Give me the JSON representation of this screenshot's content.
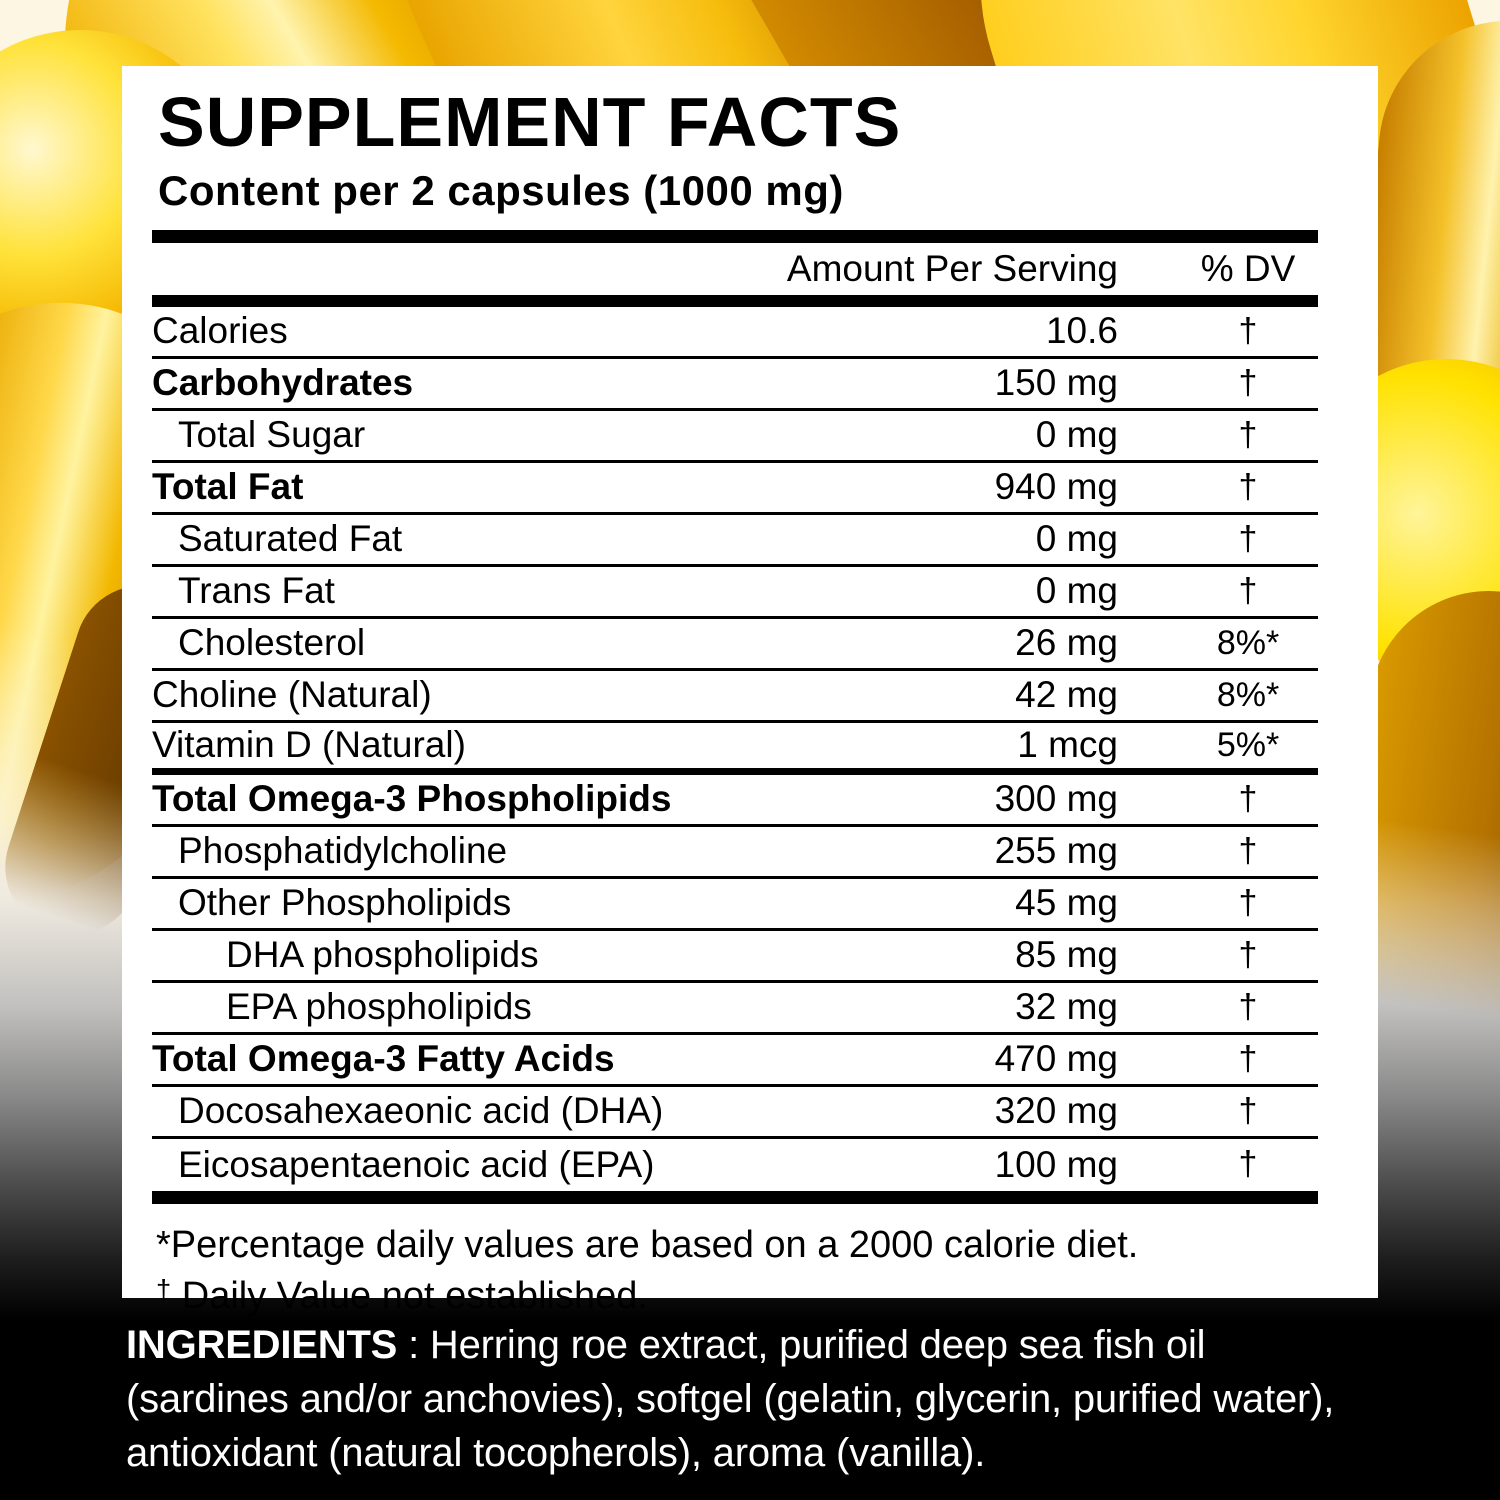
{
  "header": {
    "title": "SUPPLEMENT FACTS",
    "subtitle": "Content per 2 capsules (1000 mg)"
  },
  "table": {
    "amount_header": "Amount Per Serving",
    "dv_header": "% DV",
    "rows": [
      {
        "label": "Calories",
        "amount": "10.6",
        "dv": "†",
        "bold": false,
        "indent": 0,
        "thick_bottom": false
      },
      {
        "label": "Carbohydrates",
        "amount": "150 mg",
        "dv": "†",
        "bold": true,
        "indent": 0,
        "thick_bottom": false
      },
      {
        "label": "Total Sugar",
        "amount": "0 mg",
        "dv": "†",
        "bold": false,
        "indent": 1,
        "thick_bottom": false
      },
      {
        "label": "Total Fat",
        "amount": "940 mg",
        "dv": "†",
        "bold": true,
        "indent": 0,
        "thick_bottom": false
      },
      {
        "label": "Saturated Fat",
        "amount": "0 mg",
        "dv": "†",
        "bold": false,
        "indent": 1,
        "thick_bottom": false
      },
      {
        "label": "Trans Fat",
        "amount": "0 mg",
        "dv": "†",
        "bold": false,
        "indent": 1,
        "thick_bottom": false
      },
      {
        "label": "Cholesterol",
        "amount": "26 mg",
        "dv": "8%*",
        "bold": false,
        "indent": 1,
        "thick_bottom": false
      },
      {
        "label": "Choline (Natural)",
        "amount": "42 mg",
        "dv": "8%*",
        "bold": false,
        "indent": 0,
        "thick_bottom": false
      },
      {
        "label": "Vitamin D (Natural)",
        "amount": "1 mcg",
        "dv": "5%*",
        "bold": false,
        "indent": 0,
        "thick_bottom": true
      },
      {
        "label": "Total Omega-3 Phospholipids",
        "amount": "300 mg",
        "dv": "†",
        "bold": true,
        "indent": 0,
        "thick_bottom": false
      },
      {
        "label": "Phosphatidylcholine",
        "amount": "255 mg",
        "dv": "†",
        "bold": false,
        "indent": 1,
        "thick_bottom": false
      },
      {
        "label": "Other Phospholipids",
        "amount": "45 mg",
        "dv": "†",
        "bold": false,
        "indent": 1,
        "thick_bottom": false
      },
      {
        "label": "DHA phospholipids",
        "amount": "85 mg",
        "dv": "†",
        "bold": false,
        "indent": 2,
        "thick_bottom": false
      },
      {
        "label": "EPA phospholipids",
        "amount": "32 mg",
        "dv": "†",
        "bold": false,
        "indent": 2,
        "thick_bottom": false
      },
      {
        "label": "Total Omega-3 Fatty Acids",
        "amount": "470 mg",
        "dv": "†",
        "bold": true,
        "indent": 0,
        "thick_bottom": false
      },
      {
        "label": "Docosahexaeonic acid (DHA)",
        "amount": "320 mg",
        "dv": "†",
        "bold": false,
        "indent": 1,
        "thick_bottom": false
      },
      {
        "label": "Eicosapentaenoic acid (EPA)",
        "amount": "100 mg",
        "dv": "†",
        "bold": false,
        "indent": 1,
        "thick_bottom": false
      }
    ]
  },
  "footnotes": {
    "line1": "*Percentage daily values are based on a 2000 calorie diet.",
    "line2_symbol": "†",
    "line2_text": "Daily Value not established."
  },
  "ingredients": {
    "label": "INGREDIENTS",
    "line1_rest": " : Herring roe extract, purified deep sea fish oil",
    "line2": "(sardines and/or anchovies), softgel (gelatin, glycerin, purified water),",
    "line3": "antioxidant (natural tocopherols), aroma (vanilla)."
  },
  "colors": {
    "panel_background": "#ffffff",
    "label_text": "#000000",
    "ingredients_text": "#ffffff",
    "capsule_bright_gold": "#ffe23a",
    "capsule_gold": "#f5b700",
    "capsule_deep_amber": "#a96700",
    "background_bottom": "#000000"
  }
}
